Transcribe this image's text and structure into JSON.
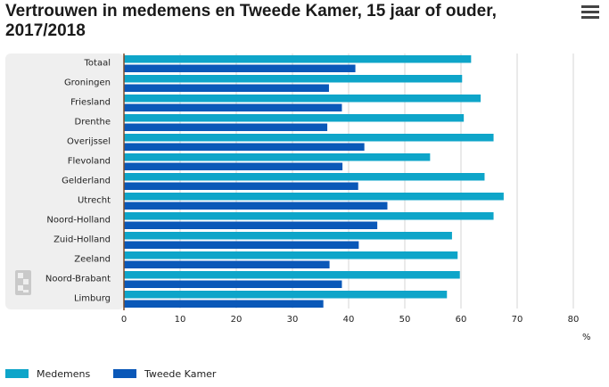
{
  "chart_data": {
    "type": "bar",
    "orientation": "horizontal",
    "title": "Vertrouwen in medemens en Tweede Kamer, 15 jaar of ouder, 2017/2018",
    "unit_label": "%",
    "xlim": [
      0,
      80
    ],
    "x_ticks": [
      "0",
      "10",
      "20",
      "30",
      "40",
      "50",
      "60",
      "70",
      "80"
    ],
    "categories": [
      "Totaal",
      "Groningen",
      "Friesland",
      "Drenthe",
      "Overijssel",
      "Flevoland",
      "Gelderland",
      "Utrecht",
      "Noord-Holland",
      "Zuid-Holland",
      "Zeeland",
      "Noord-Brabant",
      "Limburg"
    ],
    "series": [
      {
        "name": "Medemens",
        "color": "#0ea5c9",
        "values": [
          61.8,
          60.2,
          63.5,
          60.5,
          65.8,
          54.5,
          64.2,
          67.6,
          65.8,
          58.4,
          59.4,
          59.8,
          57.5
        ]
      },
      {
        "name": "Tweede Kamer",
        "color": "#0a58b8",
        "values": [
          41.2,
          36.5,
          38.8,
          36.2,
          42.8,
          38.9,
          41.7,
          46.9,
          45.1,
          41.8,
          36.6,
          38.8,
          35.5
        ]
      }
    ]
  },
  "colors": {
    "panel": "#efefef",
    "axis": "#7a4a2a",
    "grid": "#d6d6d6"
  },
  "logo_icon": "cbs-logo-icon",
  "menu_icon": "hamburger-menu-icon"
}
